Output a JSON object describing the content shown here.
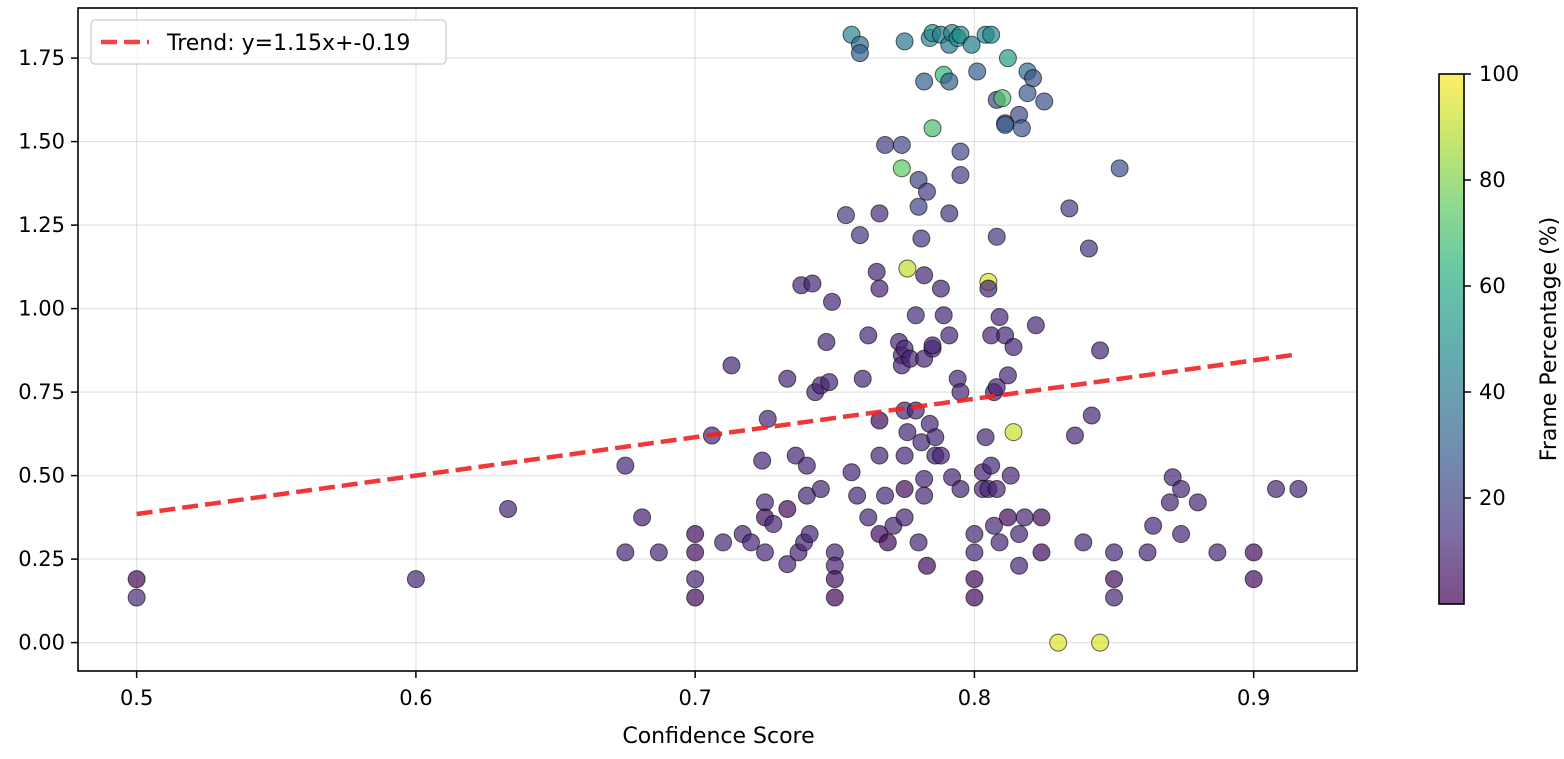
{
  "chart_data": {
    "type": "scatter",
    "title": "",
    "xlabel": "Confidence Score",
    "ylabel": "",
    "xlim": [
      0.479,
      0.937
    ],
    "ylim": [
      -0.085,
      1.9
    ],
    "x_ticks": [
      0.5,
      0.6,
      0.7,
      0.8,
      0.9
    ],
    "x_tick_labels": [
      "0.5",
      "0.6",
      "0.7",
      "0.8",
      "0.9"
    ],
    "y_ticks": [
      0.0,
      0.25,
      0.5,
      0.75,
      1.0,
      1.25,
      1.5,
      1.75
    ],
    "y_tick_labels": [
      "0.00",
      "0.25",
      "0.50",
      "0.75",
      "1.00",
      "1.25",
      "1.50",
      "1.75"
    ],
    "grid": true,
    "legend": {
      "placement": "top-left",
      "entries": [
        "Trend: y=1.15x+-0.19"
      ]
    },
    "trend_line": {
      "label": "Trend: y=1.15x+-0.19",
      "slope": 1.15,
      "intercept": -0.19,
      "x_range": [
        0.5,
        0.916
      ],
      "color": "#ee2222"
    },
    "colorbar": {
      "label": "Frame Percentage (%)",
      "min": 0,
      "max": 100,
      "ticks": [
        20,
        40,
        60,
        80,
        100
      ],
      "tick_labels": [
        "20",
        "40",
        "60",
        "80",
        "100"
      ],
      "colormap": "viridis"
    },
    "points": [
      [
        0.5,
        0.19,
        2
      ],
      [
        0.5,
        0.135,
        12
      ],
      [
        0.6,
        0.19,
        10
      ],
      [
        0.633,
        0.4,
        10
      ],
      [
        0.675,
        0.53,
        10
      ],
      [
        0.675,
        0.27,
        10
      ],
      [
        0.681,
        0.375,
        8
      ],
      [
        0.687,
        0.27,
        10
      ],
      [
        0.7,
        0.325,
        3
      ],
      [
        0.7,
        0.27,
        4
      ],
      [
        0.7,
        0.19,
        10
      ],
      [
        0.7,
        0.135,
        3
      ],
      [
        0.706,
        0.62,
        10
      ],
      [
        0.71,
        0.3,
        10
      ],
      [
        0.713,
        0.83,
        10
      ],
      [
        0.717,
        0.325,
        10
      ],
      [
        0.72,
        0.3,
        10
      ],
      [
        0.724,
        0.545,
        10
      ],
      [
        0.725,
        0.42,
        10
      ],
      [
        0.725,
        0.375,
        3
      ],
      [
        0.725,
        0.27,
        10
      ],
      [
        0.726,
        0.67,
        10
      ],
      [
        0.728,
        0.355,
        10
      ],
      [
        0.733,
        0.79,
        10
      ],
      [
        0.733,
        0.4,
        3
      ],
      [
        0.733,
        0.235,
        10
      ],
      [
        0.736,
        0.56,
        10
      ],
      [
        0.737,
        0.27,
        10
      ],
      [
        0.738,
        1.07,
        10
      ],
      [
        0.739,
        0.3,
        10
      ],
      [
        0.74,
        0.53,
        10
      ],
      [
        0.74,
        0.44,
        10
      ],
      [
        0.741,
        0.325,
        10
      ],
      [
        0.742,
        1.075,
        10
      ],
      [
        0.743,
        0.75,
        10
      ],
      [
        0.745,
        0.77,
        10
      ],
      [
        0.745,
        0.46,
        10
      ],
      [
        0.747,
        0.9,
        10
      ],
      [
        0.748,
        0.78,
        10
      ],
      [
        0.749,
        1.02,
        10
      ],
      [
        0.75,
        0.27,
        10
      ],
      [
        0.75,
        0.23,
        10
      ],
      [
        0.75,
        0.19,
        4
      ],
      [
        0.75,
        0.135,
        2
      ],
      [
        0.754,
        1.28,
        18
      ],
      [
        0.756,
        1.82,
        45
      ],
      [
        0.756,
        0.51,
        10
      ],
      [
        0.758,
        0.44,
        10
      ],
      [
        0.759,
        1.22,
        15
      ],
      [
        0.759,
        1.79,
        35
      ],
      [
        0.759,
        1.765,
        30
      ],
      [
        0.76,
        0.79,
        10
      ],
      [
        0.762,
        0.92,
        10
      ],
      [
        0.762,
        0.375,
        10
      ],
      [
        0.765,
        1.11,
        10
      ],
      [
        0.766,
        1.285,
        12
      ],
      [
        0.766,
        1.06,
        10
      ],
      [
        0.766,
        0.665,
        3
      ],
      [
        0.766,
        0.56,
        10
      ],
      [
        0.766,
        0.325,
        3
      ],
      [
        0.768,
        1.49,
        18
      ],
      [
        0.768,
        0.44,
        10
      ],
      [
        0.769,
        0.3,
        3
      ],
      [
        0.771,
        0.35,
        10
      ],
      [
        0.773,
        0.9,
        10
      ],
      [
        0.774,
        0.86,
        10
      ],
      [
        0.774,
        0.83,
        10
      ],
      [
        0.774,
        1.49,
        22
      ],
      [
        0.774,
        1.42,
        75
      ],
      [
        0.775,
        0.88,
        10
      ],
      [
        0.775,
        0.695,
        10
      ],
      [
        0.775,
        0.56,
        10
      ],
      [
        0.775,
        0.46,
        4
      ],
      [
        0.775,
        0.375,
        10
      ],
      [
        0.775,
        1.8,
        40
      ],
      [
        0.776,
        1.12,
        90
      ],
      [
        0.776,
        0.63,
        10
      ],
      [
        0.777,
        0.85,
        10
      ],
      [
        0.779,
        0.695,
        10
      ],
      [
        0.779,
        0.98,
        12
      ],
      [
        0.78,
        1.385,
        20
      ],
      [
        0.78,
        1.305,
        20
      ],
      [
        0.78,
        0.3,
        10
      ],
      [
        0.781,
        1.21,
        15
      ],
      [
        0.781,
        0.6,
        10
      ],
      [
        0.782,
        1.68,
        30
      ],
      [
        0.782,
        1.1,
        10
      ],
      [
        0.782,
        0.85,
        10
      ],
      [
        0.782,
        0.49,
        10
      ],
      [
        0.782,
        0.44,
        10
      ],
      [
        0.783,
        0.23,
        3
      ],
      [
        0.783,
        1.35,
        18
      ],
      [
        0.784,
        1.81,
        45
      ],
      [
        0.784,
        0.655,
        10
      ],
      [
        0.785,
        1.825,
        48
      ],
      [
        0.785,
        0.88,
        10
      ],
      [
        0.785,
        0.89,
        10
      ],
      [
        0.785,
        1.54,
        70
      ],
      [
        0.786,
        0.615,
        10
      ],
      [
        0.786,
        0.56,
        10
      ],
      [
        0.788,
        1.82,
        42
      ],
      [
        0.788,
        1.06,
        10
      ],
      [
        0.788,
        0.56,
        10
      ],
      [
        0.789,
        1.7,
        65
      ],
      [
        0.789,
        0.98,
        10
      ],
      [
        0.791,
        1.79,
        40
      ],
      [
        0.791,
        1.68,
        30
      ],
      [
        0.791,
        1.285,
        15
      ],
      [
        0.791,
        0.92,
        10
      ],
      [
        0.792,
        1.825,
        45
      ],
      [
        0.792,
        0.495,
        10
      ],
      [
        0.794,
        1.81,
        50
      ],
      [
        0.794,
        0.79,
        10
      ],
      [
        0.795,
        1.82,
        48
      ],
      [
        0.795,
        1.47,
        22
      ],
      [
        0.795,
        1.4,
        18
      ],
      [
        0.795,
        0.75,
        10
      ],
      [
        0.795,
        0.46,
        10
      ],
      [
        0.799,
        1.79,
        42
      ],
      [
        0.8,
        0.325,
        10
      ],
      [
        0.8,
        0.27,
        10
      ],
      [
        0.8,
        0.19,
        3
      ],
      [
        0.8,
        0.135,
        3
      ],
      [
        0.801,
        1.71,
        30
      ],
      [
        0.803,
        0.51,
        10
      ],
      [
        0.803,
        0.46,
        10
      ],
      [
        0.804,
        1.82,
        48
      ],
      [
        0.804,
        0.615,
        10
      ],
      [
        0.805,
        1.08,
        95
      ],
      [
        0.805,
        1.06,
        10
      ],
      [
        0.805,
        0.46,
        10
      ],
      [
        0.806,
        1.82,
        45
      ],
      [
        0.806,
        0.92,
        10
      ],
      [
        0.806,
        0.53,
        10
      ],
      [
        0.807,
        0.75,
        10
      ],
      [
        0.807,
        0.35,
        10
      ],
      [
        0.808,
        1.625,
        22
      ],
      [
        0.808,
        1.215,
        15
      ],
      [
        0.808,
        0.765,
        10
      ],
      [
        0.808,
        0.46,
        10
      ],
      [
        0.809,
        0.975,
        10
      ],
      [
        0.809,
        0.3,
        10
      ],
      [
        0.81,
        1.63,
        72
      ],
      [
        0.811,
        1.555,
        22
      ],
      [
        0.811,
        1.55,
        30
      ],
      [
        0.811,
        0.92,
        10
      ],
      [
        0.812,
        1.75,
        55
      ],
      [
        0.812,
        0.8,
        10
      ],
      [
        0.812,
        0.375,
        3
      ],
      [
        0.813,
        0.5,
        10
      ],
      [
        0.814,
        0.63,
        92
      ],
      [
        0.814,
        0.885,
        10
      ],
      [
        0.816,
        1.58,
        22
      ],
      [
        0.816,
        0.325,
        10
      ],
      [
        0.816,
        0.23,
        10
      ],
      [
        0.817,
        1.54,
        25
      ],
      [
        0.818,
        0.375,
        10
      ],
      [
        0.819,
        1.71,
        35
      ],
      [
        0.819,
        1.645,
        28
      ],
      [
        0.821,
        1.69,
        25
      ],
      [
        0.822,
        0.95,
        10
      ],
      [
        0.824,
        0.375,
        3
      ],
      [
        0.824,
        0.27,
        3
      ],
      [
        0.825,
        1.62,
        25
      ],
      [
        0.83,
        0.0,
        95
      ],
      [
        0.834,
        1.3,
        18
      ],
      [
        0.836,
        0.62,
        10
      ],
      [
        0.839,
        0.3,
        10
      ],
      [
        0.841,
        1.18,
        15
      ],
      [
        0.842,
        0.68,
        10
      ],
      [
        0.845,
        0.0,
        95
      ],
      [
        0.845,
        0.875,
        10
      ],
      [
        0.85,
        0.27,
        10
      ],
      [
        0.85,
        0.19,
        4
      ],
      [
        0.85,
        0.135,
        10
      ],
      [
        0.852,
        1.42,
        25
      ],
      [
        0.862,
        0.27,
        10
      ],
      [
        0.864,
        0.35,
        10
      ],
      [
        0.87,
        0.42,
        10
      ],
      [
        0.871,
        0.495,
        10
      ],
      [
        0.874,
        0.46,
        10
      ],
      [
        0.874,
        0.325,
        10
      ],
      [
        0.88,
        0.42,
        10
      ],
      [
        0.887,
        0.27,
        10
      ],
      [
        0.9,
        0.27,
        4
      ],
      [
        0.9,
        0.19,
        4
      ],
      [
        0.908,
        0.46,
        10
      ],
      [
        0.916,
        0.46,
        10
      ]
    ]
  }
}
